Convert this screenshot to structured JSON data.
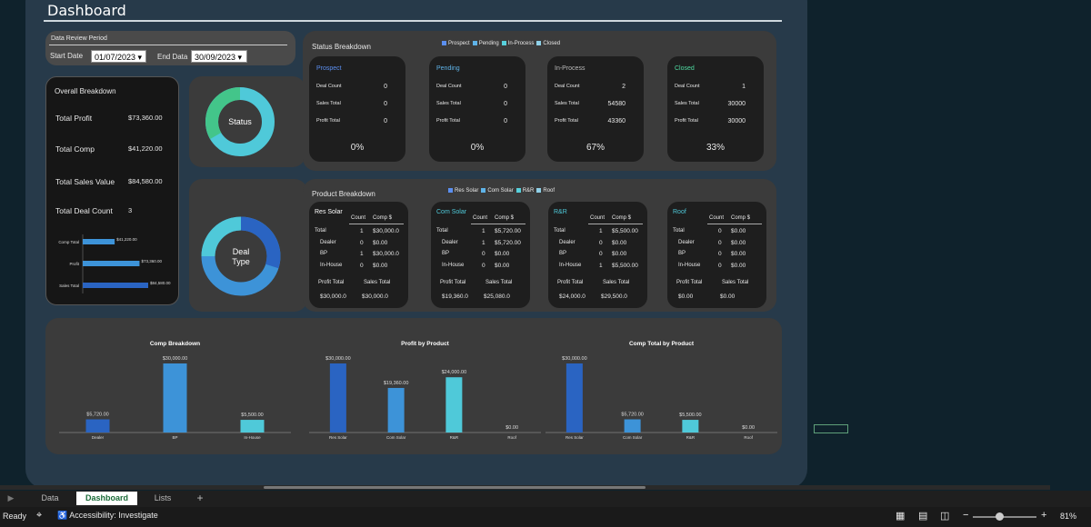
{
  "title": "Dashboard",
  "period": {
    "heading": "Data Review Period",
    "start_label": "Start Date",
    "start_value": "01/07/2023",
    "end_label": "End Data",
    "end_value": "30/09/2023"
  },
  "overall": {
    "heading": "Overall Breakdown",
    "rows": [
      {
        "label": "Total Profit",
        "value": "$73,360.00"
      },
      {
        "label": "Total Comp",
        "value": "$41,220.00"
      },
      {
        "label": "Total Sales Value",
        "value": "$84,580.00"
      },
      {
        "label": "Total Deal Count",
        "value": "3"
      }
    ],
    "mini_chart": {
      "labels": [
        "Comp Total",
        "Profit",
        "Sales Total"
      ],
      "values": [
        41220,
        73360,
        84580
      ],
      "data_labels": [
        "$41,220.00",
        "$73,360.00",
        "$84,580.00"
      ]
    }
  },
  "status_donut_label": "Status",
  "deal_donut_label1": "Deal",
  "deal_donut_label2": "Type",
  "status": {
    "heading": "Status Breakdown",
    "legend": [
      "Prospect",
      "Pending",
      "In-Process",
      "Closed"
    ],
    "row_labels": [
      "Deal Count",
      "Sales Total",
      "Profit Total"
    ],
    "cards": [
      {
        "name": "Prospect",
        "deal": "0",
        "sales": "0",
        "profit": "0",
        "pct": "0%"
      },
      {
        "name": "Pending",
        "deal": "0",
        "sales": "0",
        "profit": "0",
        "pct": "0%"
      },
      {
        "name": "In-Process",
        "deal": "2",
        "sales": "54580",
        "profit": "43360",
        "pct": "67%"
      },
      {
        "name": "Closed",
        "deal": "1",
        "sales": "30000",
        "profit": "30000",
        "pct": "33%"
      }
    ]
  },
  "product": {
    "heading": "Product Breakdown",
    "legend": [
      "Res Solar",
      "Com Solar",
      "R&R",
      "Roof"
    ],
    "col_count": "Count",
    "col_comp": "Comp $",
    "row_labels": [
      "Total",
      "Dealer",
      "BP",
      "In-House"
    ],
    "foot_profit": "Profit Total",
    "foot_sales": "Sales Total",
    "cards": [
      {
        "name": "Res Solar",
        "rows": [
          [
            "1",
            "$30,000.0"
          ],
          [
            "0",
            "$0.00"
          ],
          [
            "1",
            "$30,000.0"
          ],
          [
            "0",
            "$0.00"
          ]
        ],
        "profit": "$30,000.0",
        "sales": "$30,000.0"
      },
      {
        "name": "Com Solar",
        "rows": [
          [
            "1",
            "$5,720.00"
          ],
          [
            "1",
            "$5,720.00"
          ],
          [
            "0",
            "$0.00"
          ],
          [
            "0",
            "$0.00"
          ]
        ],
        "profit": "$19,360.0",
        "sales": "$25,080.0"
      },
      {
        "name": "R&R",
        "rows": [
          [
            "1",
            "$5,500.00"
          ],
          [
            "0",
            "$0.00"
          ],
          [
            "0",
            "$0.00"
          ],
          [
            "1",
            "$5,500.00"
          ]
        ],
        "profit": "$24,000.0",
        "sales": "$29,500.0"
      },
      {
        "name": "Roof",
        "rows": [
          [
            "0",
            "$0.00"
          ],
          [
            "0",
            "$0.00"
          ],
          [
            "0",
            "$0.00"
          ],
          [
            "0",
            "$0.00"
          ]
        ],
        "profit": "$0.00",
        "sales": "$0.00"
      }
    ]
  },
  "chart_data": [
    {
      "type": "bar",
      "title": "Comp Breakdown",
      "categories": [
        "Dealer",
        "BP",
        "In-House"
      ],
      "values": [
        5720,
        30000,
        5500
      ],
      "data_labels": [
        "$5,720.00",
        "$30,000.00",
        "$5,500.00"
      ],
      "colors": [
        "#2a64c2",
        "#3d93d8",
        "#4fc9d9"
      ]
    },
    {
      "type": "bar",
      "title": "Profit by Product",
      "categories": [
        "Res Solar",
        "Com Solar",
        "R&R",
        "Roof"
      ],
      "values": [
        30000,
        19360,
        24000,
        0
      ],
      "data_labels": [
        "$30,000.00",
        "$19,360.00",
        "$24,000.00",
        "$0.00"
      ],
      "colors": [
        "#2a64c2",
        "#3d93d8",
        "#4fc9d9",
        "#6fd0e0"
      ]
    },
    {
      "type": "bar",
      "title": "Comp Total by Product",
      "categories": [
        "Res Solar",
        "Com Solar",
        "R&R",
        "Roof"
      ],
      "values": [
        30000,
        5720,
        5500,
        0
      ],
      "data_labels": [
        "$30,000.00",
        "$5,720.00",
        "$5,500.00",
        "$0.00"
      ],
      "colors": [
        "#2a64c2",
        "#3d93d8",
        "#4fc9d9",
        "#6fd0e0"
      ]
    }
  ],
  "legend_colors": [
    "#5b8ff0",
    "#5fb3e8",
    "#57d0dc",
    "#8fd0e8"
  ],
  "tabs": [
    "Data",
    "Dashboard",
    "Lists",
    "+"
  ],
  "statusbar": {
    "ready": "Ready",
    "accessibility": "Accessibility: Investigate",
    "zoom": "81%"
  }
}
